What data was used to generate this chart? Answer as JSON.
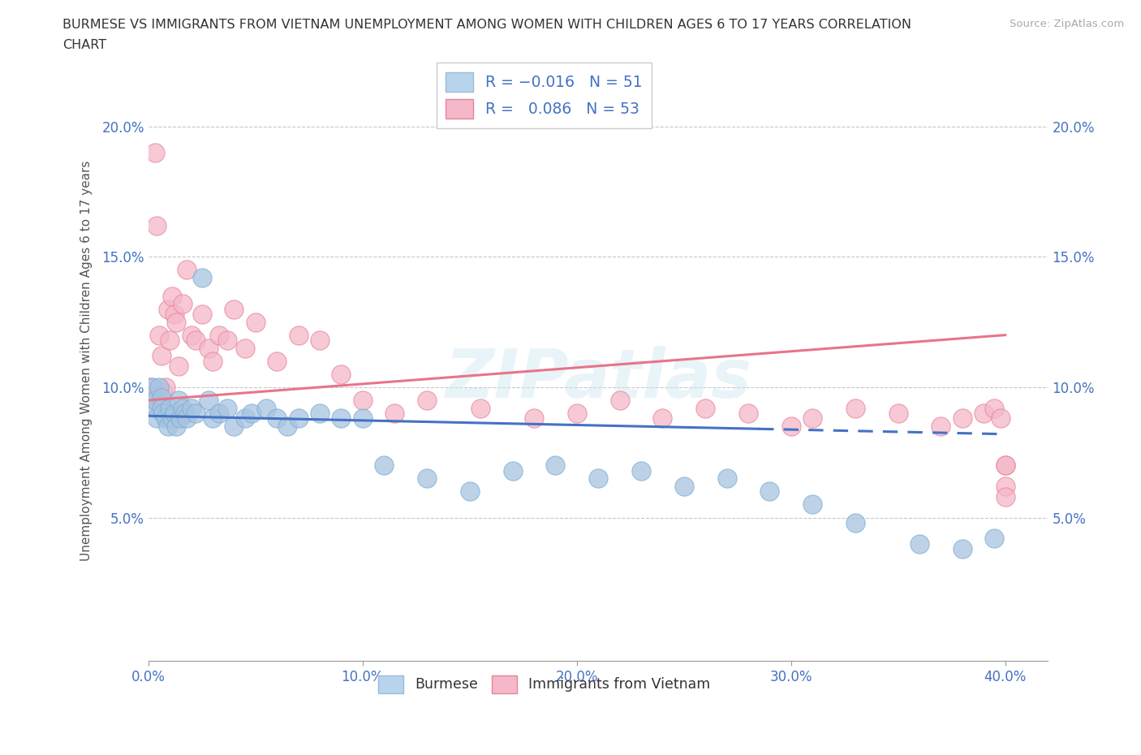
{
  "title_line1": "BURMESE VS IMMIGRANTS FROM VIETNAM UNEMPLOYMENT AMONG WOMEN WITH CHILDREN AGES 6 TO 17 YEARS CORRELATION",
  "title_line2": "CHART",
  "source": "Source: ZipAtlas.com",
  "ylabel": "Unemployment Among Women with Children Ages 6 to 17 years",
  "xlim": [
    0.0,
    0.42
  ],
  "ylim": [
    -0.005,
    0.225
  ],
  "xticks": [
    0.0,
    0.1,
    0.2,
    0.3,
    0.4
  ],
  "yticks": [
    0.0,
    0.05,
    0.1,
    0.15,
    0.2
  ],
  "ytick_labels_left": [
    "",
    "5.0%",
    "10.0%",
    "15.0%",
    "20.0%"
  ],
  "ytick_labels_right": [
    "",
    "5.0%",
    "10.0%",
    "15.0%",
    "20.0%"
  ],
  "burmese_R": -0.016,
  "burmese_N": 51,
  "vietnam_R": 0.086,
  "vietnam_N": 53,
  "burmese_color": "#a8c4e0",
  "burmese_edge_color": "#7aaed6",
  "vietnam_color": "#f4b8c8",
  "vietnam_edge_color": "#e8849a",
  "burmese_line_color": "#4472c4",
  "vietnam_line_color": "#e8748a",
  "watermark": "ZIPatlas",
  "legend_blue_label": "Burmese",
  "legend_pink_label": "Immigrants from Vietnam",
  "burmese_line_solid_end": 0.285,
  "burmese_x": [
    0.002,
    0.003,
    0.003,
    0.004,
    0.005,
    0.006,
    0.006,
    0.007,
    0.008,
    0.009,
    0.01,
    0.011,
    0.012,
    0.013,
    0.014,
    0.015,
    0.016,
    0.017,
    0.018,
    0.02,
    0.022,
    0.025,
    0.028,
    0.03,
    0.033,
    0.037,
    0.04,
    0.045,
    0.048,
    0.055,
    0.06,
    0.065,
    0.07,
    0.08,
    0.09,
    0.1,
    0.11,
    0.13,
    0.15,
    0.17,
    0.19,
    0.21,
    0.23,
    0.25,
    0.27,
    0.29,
    0.31,
    0.33,
    0.36,
    0.38,
    0.395
  ],
  "burmese_y": [
    0.1,
    0.092,
    0.095,
    0.088,
    0.1,
    0.096,
    0.092,
    0.09,
    0.088,
    0.085,
    0.092,
    0.088,
    0.09,
    0.085,
    0.095,
    0.088,
    0.092,
    0.09,
    0.088,
    0.092,
    0.09,
    0.142,
    0.095,
    0.088,
    0.09,
    0.092,
    0.085,
    0.088,
    0.09,
    0.092,
    0.088,
    0.085,
    0.088,
    0.09,
    0.088,
    0.088,
    0.07,
    0.065,
    0.06,
    0.068,
    0.07,
    0.065,
    0.068,
    0.062,
    0.065,
    0.06,
    0.055,
    0.048,
    0.04,
    0.038,
    0.042
  ],
  "vietnam_x": [
    0.001,
    0.002,
    0.003,
    0.004,
    0.005,
    0.006,
    0.007,
    0.008,
    0.009,
    0.01,
    0.011,
    0.012,
    0.013,
    0.014,
    0.016,
    0.018,
    0.02,
    0.022,
    0.025,
    0.028,
    0.03,
    0.033,
    0.037,
    0.04,
    0.045,
    0.05,
    0.06,
    0.07,
    0.08,
    0.09,
    0.1,
    0.115,
    0.13,
    0.155,
    0.18,
    0.2,
    0.22,
    0.24,
    0.26,
    0.28,
    0.3,
    0.31,
    0.33,
    0.35,
    0.37,
    0.38,
    0.39,
    0.395,
    0.398,
    0.4,
    0.4,
    0.4,
    0.4
  ],
  "vietnam_y": [
    0.1,
    0.096,
    0.19,
    0.162,
    0.12,
    0.112,
    0.098,
    0.1,
    0.13,
    0.118,
    0.135,
    0.128,
    0.125,
    0.108,
    0.132,
    0.145,
    0.12,
    0.118,
    0.128,
    0.115,
    0.11,
    0.12,
    0.118,
    0.13,
    0.115,
    0.125,
    0.11,
    0.12,
    0.118,
    0.105,
    0.095,
    0.09,
    0.095,
    0.092,
    0.088,
    0.09,
    0.095,
    0.088,
    0.092,
    0.09,
    0.085,
    0.088,
    0.092,
    0.09,
    0.085,
    0.088,
    0.09,
    0.092,
    0.088,
    0.07,
    0.062,
    0.058,
    0.07
  ]
}
